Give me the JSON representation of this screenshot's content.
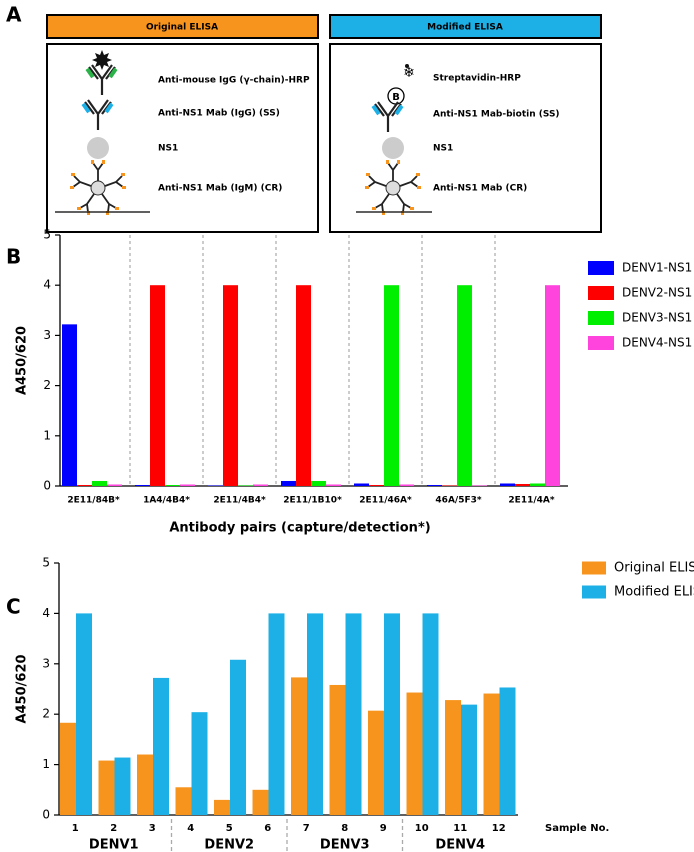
{
  "diagram": {
    "panel": "A",
    "original": {
      "title": "Original ELISA",
      "layers": [
        "Anti-mouse IgG (γ-chain)-HRP",
        "Anti-NS1 Mab (IgG) (SS)",
        "NS1",
        "Anti-NS1 Mab (IgM) (CR)"
      ]
    },
    "modified": {
      "title": "Modified ELISA",
      "layers": [
        "Streptavidin-HRP",
        "Anti-NS1 Mab-biotin (SS)",
        "NS1",
        "Anti-NS1 Mab (CR)"
      ],
      "biotin": "B"
    }
  },
  "chart_data": [
    {
      "type": "bar",
      "panel": "B",
      "y_label": "A450/620",
      "x_label": "Antibody pairs (capture/detection*)",
      "categories": [
        "2E11/84B*",
        "1A4/4B4*",
        "2E11/4B4*",
        "2E11/1B10*",
        "2E11/46A*",
        "46A/5F3*",
        "2E11/4A*"
      ],
      "series": [
        {
          "name": "DENV1-NS1",
          "color": "#0000ff",
          "values": [
            3.22,
            0.02,
            0.01,
            0.1,
            0.05,
            0.02,
            0.05
          ]
        },
        {
          "name": "DENV2-NS1",
          "color": "#ff0000",
          "values": [
            0.02,
            4,
            4,
            4,
            0.02,
            0.01,
            0.04
          ]
        },
        {
          "name": "DENV3-NS1",
          "color": "#00ee00",
          "values": [
            0.1,
            0.02,
            0.01,
            0.1,
            4,
            4,
            0.05
          ]
        },
        {
          "name": "DENV4-NS1",
          "color": "#ff44dd",
          "values": [
            0.03,
            0.03,
            0.03,
            0.03,
            0.03,
            0.01,
            4
          ]
        }
      ],
      "ylim": [
        0,
        5
      ],
      "yticks": [
        0,
        1,
        2,
        3,
        4,
        5
      ],
      "legend": "upper right"
    },
    {
      "type": "bar",
      "panel": "C",
      "y_label": "A450/620",
      "x_label": "Sample No.",
      "categories": [
        "1",
        "2",
        "3",
        "4",
        "5",
        "6",
        "7",
        "8",
        "9",
        "10",
        "11",
        "12"
      ],
      "groups": [
        "DENV1",
        "DENV2",
        "DENV3",
        "DENV4"
      ],
      "series": [
        {
          "name": "Original ELISA",
          "color": "#f7941d",
          "values": [
            1.83,
            1.08,
            1.2,
            0.55,
            0.3,
            0.5,
            2.73,
            2.58,
            2.07,
            2.43,
            2.28,
            2.41
          ]
        },
        {
          "name": "Modified ELISA",
          "color": "#1cb0e6",
          "values": [
            4,
            1.14,
            2.72,
            2.04,
            3.08,
            4,
            4,
            4,
            4,
            4,
            2.19,
            2.53
          ]
        }
      ],
      "ylim": [
        0,
        5
      ],
      "yticks": [
        0,
        1,
        2,
        3,
        4,
        5
      ],
      "legend": "upper right"
    }
  ]
}
